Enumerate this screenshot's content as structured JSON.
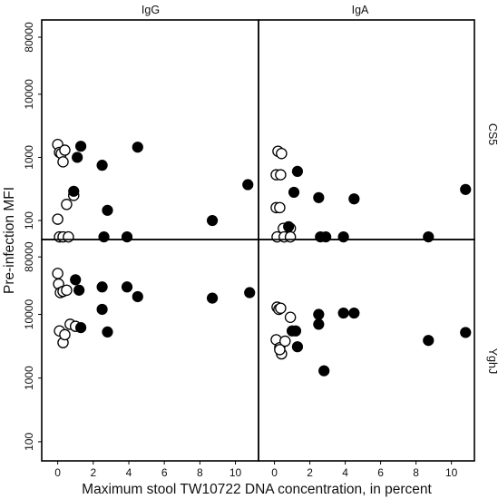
{
  "chart_data": {
    "type": "scatter",
    "xlabel": "Maximum stool TW10722 DNA concentration, in percent",
    "ylabel": "Pre-infection MFI",
    "xlim": [
      -0.9,
      11.3
    ],
    "x_ticks": [
      0,
      2,
      4,
      6,
      8,
      10
    ],
    "x_tick_labels": [
      "0",
      "2",
      "4",
      "6",
      "8",
      "10"
    ],
    "y_scale": "log",
    "column_labels": [
      "IgG",
      "IgA"
    ],
    "row_labels": [
      "CS5",
      "YghJ"
    ],
    "marker_legend": {
      "open": "hollow circle",
      "filled": "solid black circle"
    },
    "panels": [
      {
        "column": "IgG",
        "row": "CS5",
        "ylim": [
          50,
          150000
        ],
        "y_ticks": [
          100,
          1000,
          10000,
          80000
        ],
        "y_tick_labels": [
          "100",
          "1000",
          "10000",
          "80000"
        ],
        "open_points": [
          {
            "x": 0.0,
            "y": 1600
          },
          {
            "x": 0.1,
            "y": 1200
          },
          {
            "x": 0.2,
            "y": 1150
          },
          {
            "x": 0.3,
            "y": 850
          },
          {
            "x": 0.4,
            "y": 1300
          },
          {
            "x": 0.5,
            "y": 180
          },
          {
            "x": 0.9,
            "y": 250
          },
          {
            "x": 0.0,
            "y": 105
          },
          {
            "x": 0.1,
            "y": 55
          },
          {
            "x": 0.3,
            "y": 55
          },
          {
            "x": 0.6,
            "y": 55
          }
        ],
        "filled_points": [
          {
            "x": 0.9,
            "y": 290
          },
          {
            "x": 1.1,
            "y": 1000
          },
          {
            "x": 1.3,
            "y": 1500
          },
          {
            "x": 2.5,
            "y": 750
          },
          {
            "x": 2.8,
            "y": 145
          },
          {
            "x": 2.6,
            "y": 55
          },
          {
            "x": 3.9,
            "y": 55
          },
          {
            "x": 4.5,
            "y": 1450
          },
          {
            "x": 8.7,
            "y": 100
          },
          {
            "x": 10.7,
            "y": 370
          }
        ]
      },
      {
        "column": "IgA",
        "row": "CS5",
        "ylim": [
          50,
          150000
        ],
        "y_ticks": [
          100,
          1000,
          10000,
          80000
        ],
        "y_tick_labels": [
          "100",
          "1000",
          "10000",
          "80000"
        ],
        "open_points": [
          {
            "x": 0.2,
            "y": 1250
          },
          {
            "x": 0.4,
            "y": 1150
          },
          {
            "x": 0.1,
            "y": 530
          },
          {
            "x": 0.35,
            "y": 530
          },
          {
            "x": 0.1,
            "y": 160
          },
          {
            "x": 0.3,
            "y": 160
          },
          {
            "x": 0.5,
            "y": 75
          },
          {
            "x": 0.9,
            "y": 75
          },
          {
            "x": 0.15,
            "y": 55
          },
          {
            "x": 0.55,
            "y": 55
          },
          {
            "x": 0.9,
            "y": 55
          }
        ],
        "filled_points": [
          {
            "x": 0.8,
            "y": 80
          },
          {
            "x": 1.1,
            "y": 280
          },
          {
            "x": 1.3,
            "y": 600
          },
          {
            "x": 2.5,
            "y": 230
          },
          {
            "x": 2.6,
            "y": 55
          },
          {
            "x": 2.9,
            "y": 55
          },
          {
            "x": 3.9,
            "y": 55
          },
          {
            "x": 4.5,
            "y": 220
          },
          {
            "x": 8.7,
            "y": 55
          },
          {
            "x": 10.8,
            "y": 310
          }
        ]
      },
      {
        "column": "IgG",
        "row": "YghJ",
        "ylim": [
          50,
          150000
        ],
        "y_ticks": [
          100,
          1000,
          10000,
          80000
        ],
        "y_tick_labels": [
          "100",
          "1000",
          "10000",
          "80000"
        ],
        "open_points": [
          {
            "x": 0.0,
            "y": 44000
          },
          {
            "x": 0.05,
            "y": 30000
          },
          {
            "x": 0.15,
            "y": 22000
          },
          {
            "x": 0.3,
            "y": 23000
          },
          {
            "x": 0.5,
            "y": 24000
          },
          {
            "x": 0.1,
            "y": 5500
          },
          {
            "x": 0.3,
            "y": 3600
          },
          {
            "x": 0.4,
            "y": 4800
          },
          {
            "x": 0.7,
            "y": 7000
          },
          {
            "x": 1.0,
            "y": 6500
          }
        ],
        "filled_points": [
          {
            "x": 1.0,
            "y": 35000
          },
          {
            "x": 1.2,
            "y": 24000
          },
          {
            "x": 1.3,
            "y": 6200
          },
          {
            "x": 2.5,
            "y": 27000
          },
          {
            "x": 2.5,
            "y": 12000
          },
          {
            "x": 2.8,
            "y": 5300
          },
          {
            "x": 3.9,
            "y": 27000
          },
          {
            "x": 4.5,
            "y": 19000
          },
          {
            "x": 8.7,
            "y": 18000
          },
          {
            "x": 10.8,
            "y": 22000
          }
        ]
      },
      {
        "column": "IgA",
        "row": "YghJ",
        "ylim": [
          50,
          150000
        ],
        "y_ticks": [
          100,
          1000,
          10000,
          80000
        ],
        "y_tick_labels": [
          "100",
          "1000",
          "10000",
          "80000"
        ],
        "open_points": [
          {
            "x": 0.15,
            "y": 13000
          },
          {
            "x": 0.25,
            "y": 12000
          },
          {
            "x": 0.35,
            "y": 12500
          },
          {
            "x": 0.9,
            "y": 9000
          },
          {
            "x": 0.1,
            "y": 4000
          },
          {
            "x": 0.3,
            "y": 3000
          },
          {
            "x": 0.4,
            "y": 2400
          },
          {
            "x": 0.6,
            "y": 3800
          },
          {
            "x": 0.3,
            "y": 2800
          }
        ],
        "filled_points": [
          {
            "x": 1.0,
            "y": 5500
          },
          {
            "x": 1.2,
            "y": 5500
          },
          {
            "x": 1.3,
            "y": 3100
          },
          {
            "x": 2.5,
            "y": 10000
          },
          {
            "x": 2.5,
            "y": 7000
          },
          {
            "x": 2.8,
            "y": 1300
          },
          {
            "x": 3.9,
            "y": 10500
          },
          {
            "x": 4.5,
            "y": 10500
          },
          {
            "x": 8.7,
            "y": 3900
          },
          {
            "x": 10.8,
            "y": 5200
          }
        ]
      }
    ]
  }
}
